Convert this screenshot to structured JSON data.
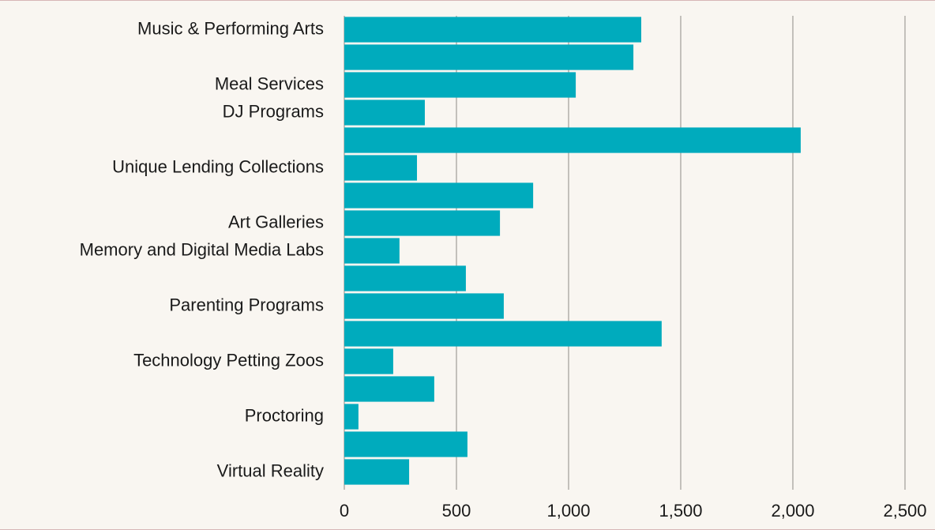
{
  "chart_data": {
    "type": "barh",
    "categories": [
      "Music & Performing Arts",
      null,
      "Meal Services",
      "DJ Programs",
      null,
      "Unique Lending Collections",
      null,
      "Art Galleries",
      "Memory and Digital Media Labs",
      null,
      "Parenting Programs",
      null,
      "Technology Petting Zoos",
      null,
      "Proctoring",
      null,
      "Virtual Reality"
    ],
    "values": [
      1324,
      1289,
      1032,
      359,
      2035,
      324,
      842,
      694,
      246,
      542,
      711,
      1415,
      218,
      401,
      63,
      549,
      289
    ],
    "color": "#00abbd",
    "xlim": [
      0,
      2500
    ],
    "xticks": [
      0,
      500,
      {
        "value": 1000,
        "label": "1,000"
      },
      {
        "value": 1500,
        "label": "1,500"
      },
      {
        "value": 2000,
        "label": "2,000"
      },
      {
        "value": 2500,
        "label": "2,500"
      }
    ],
    "grid": true
  }
}
